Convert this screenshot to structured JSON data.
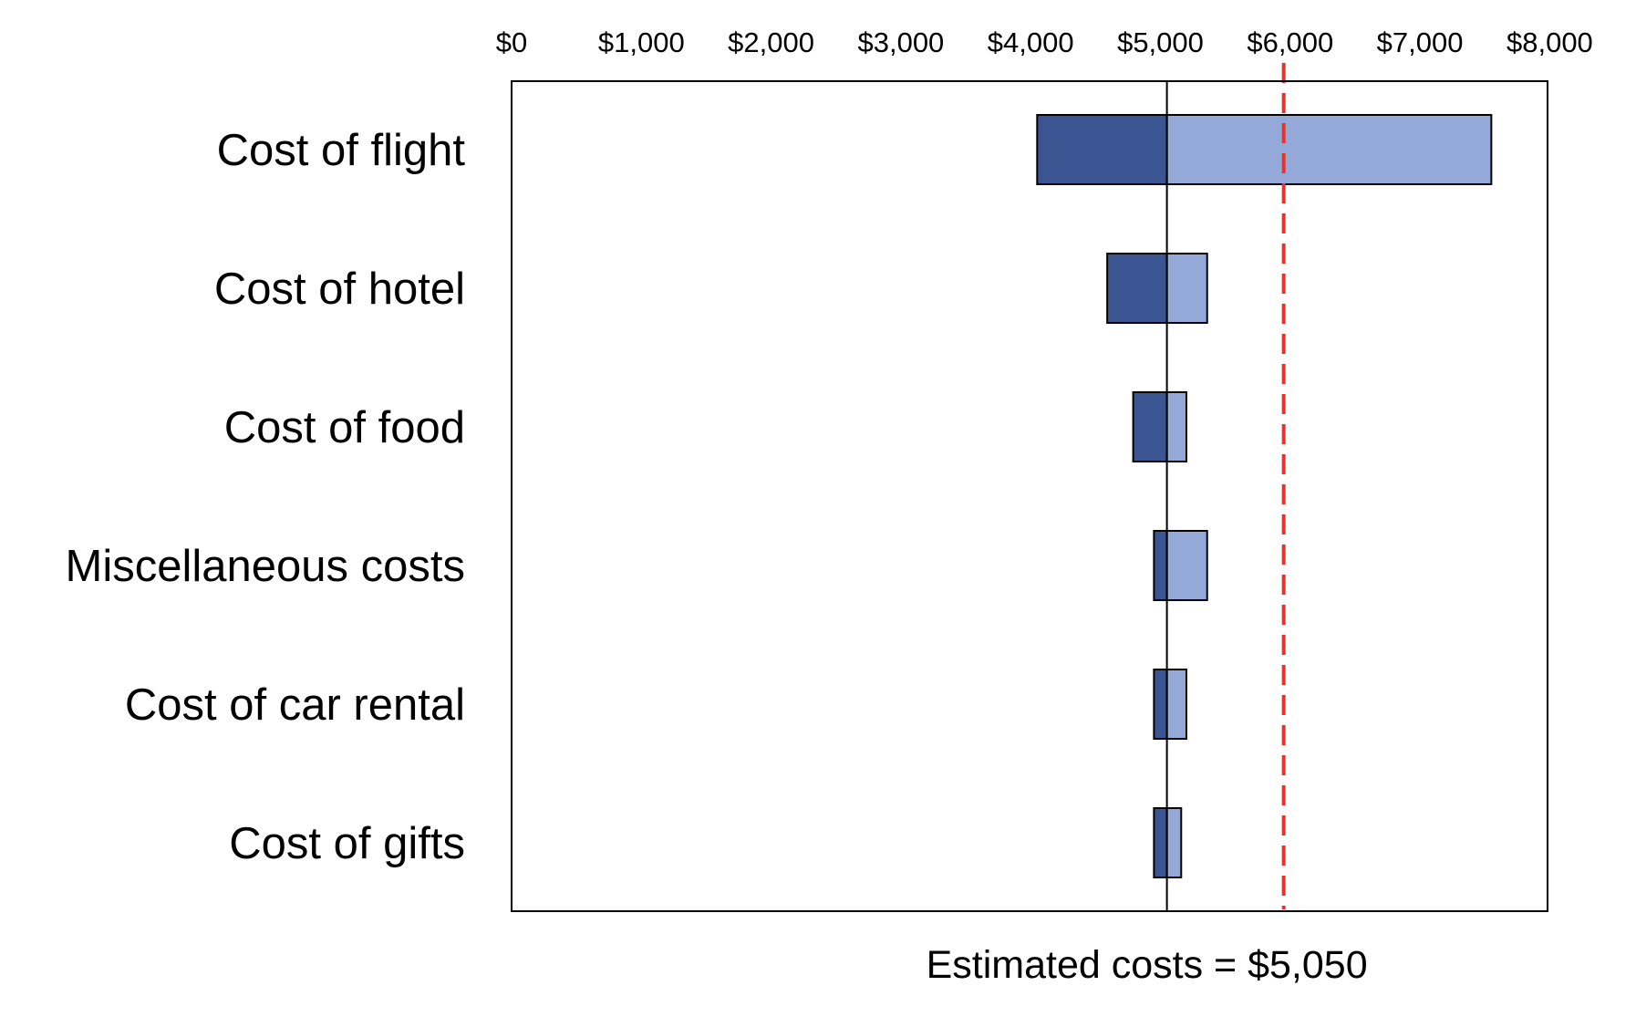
{
  "chart_data": {
    "type": "bar",
    "subtype": "tornado",
    "orientation": "horizontal",
    "title": "",
    "xlabel": "",
    "ylabel": "",
    "x_axis_position": "top",
    "xlim": [
      0,
      8000
    ],
    "x_ticks": [
      0,
      1000,
      2000,
      3000,
      4000,
      5000,
      6000,
      7000,
      8000
    ],
    "x_tick_labels": [
      "$0",
      "$1,000",
      "$2,000",
      "$3,000",
      "$4,000",
      "$5,000",
      "$6,000",
      "$7,000",
      "$8,000"
    ],
    "grid": false,
    "legend": "none",
    "categories": [
      "Cost of flight",
      "Cost of hotel",
      "Cost of food",
      "Miscellaneous costs",
      "Cost of car rental",
      "Cost of gifts"
    ],
    "base_value": 5050,
    "base_label": "Estimated costs = $5,050",
    "series": [
      {
        "role": "low",
        "values": [
          4050,
          4590,
          4790,
          4950,
          4950,
          4950
        ],
        "color": "#3a5591"
      },
      {
        "role": "high",
        "values": [
          7550,
          5360,
          5200,
          5360,
          5200,
          5160
        ],
        "color": "#94a9d8"
      }
    ],
    "reference_line": {
      "value": 5950,
      "style": "dashed",
      "color": "#e8332d"
    }
  }
}
